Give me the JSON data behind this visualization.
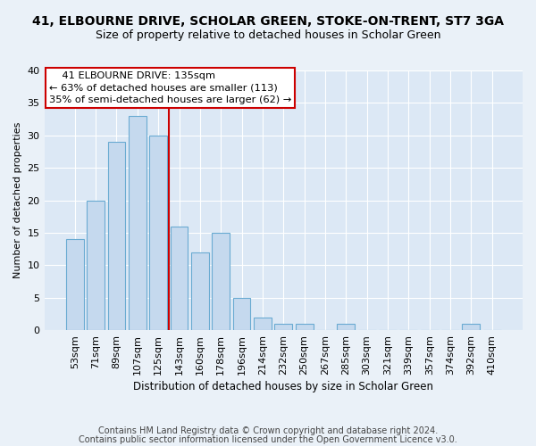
{
  "title": "41, ELBOURNE DRIVE, SCHOLAR GREEN, STOKE-ON-TRENT, ST7 3GA",
  "subtitle": "Size of property relative to detached houses in Scholar Green",
  "xlabel": "Distribution of detached houses by size in Scholar Green",
  "ylabel": "Number of detached properties",
  "categories": [
    "53sqm",
    "71sqm",
    "89sqm",
    "107sqm",
    "125sqm",
    "143sqm",
    "160sqm",
    "178sqm",
    "196sqm",
    "214sqm",
    "232sqm",
    "250sqm",
    "267sqm",
    "285sqm",
    "303sqm",
    "321sqm",
    "339sqm",
    "357sqm",
    "374sqm",
    "392sqm",
    "410sqm"
  ],
  "values": [
    14,
    20,
    29,
    33,
    30,
    16,
    12,
    15,
    5,
    2,
    1,
    1,
    0,
    1,
    0,
    0,
    0,
    0,
    0,
    1,
    0
  ],
  "bar_color": "#c5d9ee",
  "bar_edgecolor": "#6aabd2",
  "vline_index": 4.5,
  "vline_color": "#cc0000",
  "annotation_line1": "    41 ELBOURNE DRIVE: 135sqm",
  "annotation_line2": "← 63% of detached houses are smaller (113)",
  "annotation_line3": "35% of semi-detached houses are larger (62) →",
  "annotation_box_color": "#cc0000",
  "ylim": [
    0,
    40
  ],
  "yticks": [
    0,
    5,
    10,
    15,
    20,
    25,
    30,
    35,
    40
  ],
  "footnote1": "Contains HM Land Registry data © Crown copyright and database right 2024.",
  "footnote2": "Contains public sector information licensed under the Open Government Licence v3.0.",
  "bg_color": "#eaf1f8",
  "plot_bg_color": "#dce8f5",
  "grid_color": "#ffffff",
  "title_fontsize": 10,
  "subtitle_fontsize": 9,
  "axis_label_fontsize": 8,
  "tick_fontsize": 8,
  "footnote_fontsize": 7
}
